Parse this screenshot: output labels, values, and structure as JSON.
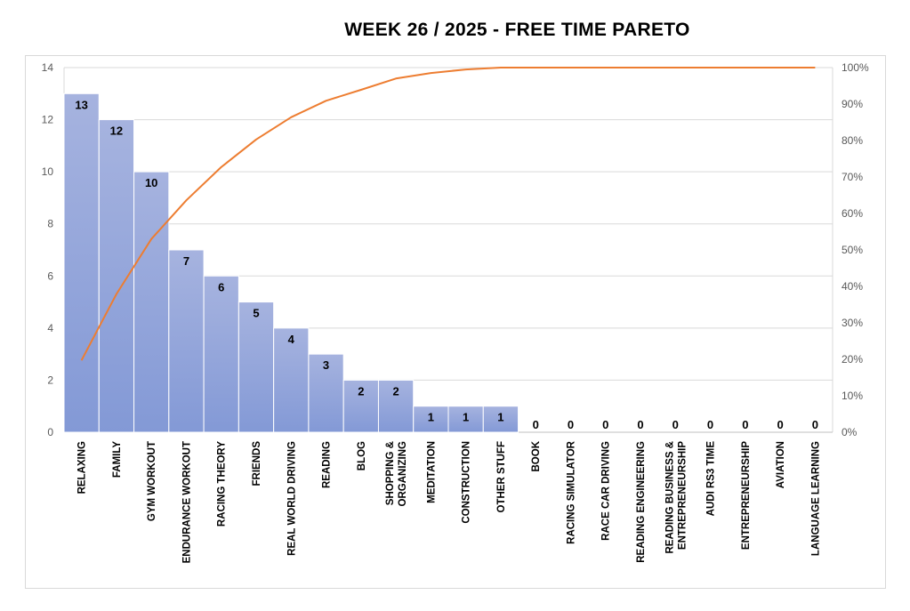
{
  "chart_data": {
    "type": "bar",
    "title": "WEEK 26  / 2025  - FREE TIME PARETO",
    "categories": [
      "RELAXING",
      "FAMILY",
      "GYM WORKOUT",
      "ENDURANCE WORKOUT",
      "RACING THEORY",
      "FRIENDS",
      "REAL WORLD DRIVING",
      "READING",
      "BLOG",
      "SHOPPING & ORGANIZING",
      "MEDITATION",
      "CONSTRUCTION",
      "OTHER STUFF",
      "BOOK",
      "RACING SIMULATOR",
      "RACE CAR DRIVING",
      "READING ENGINEERING",
      "READING BUSINESS & ENTREPRENEURSHIP",
      "AUDI RS3 TIME",
      "ENTREPRENEURSHIP",
      "AVIATION",
      "LANGUAGE LEARNING"
    ],
    "category_lines": [
      [
        "RELAXING"
      ],
      [
        "FAMILY"
      ],
      [
        "GYM WORKOUT"
      ],
      [
        "ENDURANCE WORKOUT"
      ],
      [
        "RACING THEORY"
      ],
      [
        "FRIENDS"
      ],
      [
        "REAL WORLD DRIVING"
      ],
      [
        "READING"
      ],
      [
        "BLOG"
      ],
      [
        "SHOPPING &",
        "ORGANIZING"
      ],
      [
        "MEDITATION"
      ],
      [
        "CONSTRUCTION"
      ],
      [
        "OTHER STUFF"
      ],
      [
        "BOOK"
      ],
      [
        "RACING SIMULATOR"
      ],
      [
        "RACE CAR DRIVING"
      ],
      [
        "READING ENGINEERING"
      ],
      [
        "READING BUSINESS &",
        "ENTREPRENEURSHIP"
      ],
      [
        "AUDI RS3 TIME"
      ],
      [
        "ENTREPRENEURSHIP"
      ],
      [
        "AVIATION"
      ],
      [
        "LANGUAGE LEARNING"
      ]
    ],
    "series": [
      {
        "type": "bar",
        "values": [
          13,
          12,
          10,
          7,
          6,
          5,
          4,
          3,
          2,
          2,
          1,
          1,
          1,
          0,
          0,
          0,
          0,
          0,
          0,
          0,
          0,
          0
        ]
      },
      {
        "type": "line",
        "axis": "right",
        "values": [
          19.7,
          37.9,
          53.0,
          63.6,
          72.7,
          80.3,
          86.4,
          90.9,
          93.9,
          97.0,
          98.5,
          99.5,
          100,
          100,
          100,
          100,
          100,
          100,
          100,
          100,
          100,
          100
        ]
      }
    ],
    "ylim": [
      0,
      14
    ],
    "y_ticks": [
      "0",
      "2",
      "4",
      "6",
      "8",
      "10",
      "12",
      "14"
    ],
    "y2lim": [
      0,
      100
    ],
    "y2_ticks": [
      "0%",
      "10%",
      "20%",
      "30%",
      "40%",
      "50%",
      "60%",
      "70%",
      "80%",
      "90%",
      "100%"
    ],
    "grid": true,
    "colors": {
      "bar": "#8fa2d8",
      "bar_edge": "#ffffff",
      "line": "#ed7d31",
      "grid": "#d9d9d9",
      "tick": "#595959"
    }
  }
}
